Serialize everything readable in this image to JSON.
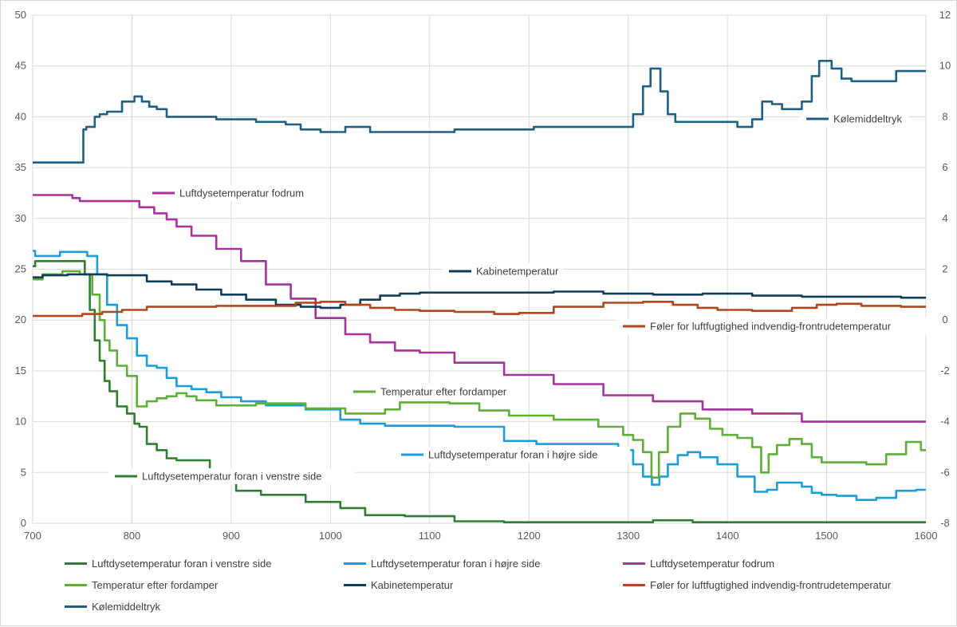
{
  "chart_data": {
    "type": "line",
    "title": "",
    "xlabel": "",
    "ylabel": "",
    "xlim": [
      700,
      1600
    ],
    "ylim": [
      0,
      50
    ],
    "y2lim": [
      -8,
      12
    ],
    "x_ticks": [
      "700",
      "800",
      "900",
      "1000",
      "1100",
      "1200",
      "1300",
      "1400",
      "1500",
      "1600"
    ],
    "y_ticks": [
      "0",
      "5",
      "10",
      "15",
      "20",
      "25",
      "30",
      "35",
      "40",
      "45",
      "50"
    ],
    "y2_ticks": [
      "-8",
      "-6",
      "-4",
      "-2",
      "0",
      "2",
      "4",
      "6",
      "8",
      "10",
      "12"
    ],
    "grid": true,
    "legend_position": "bottom",
    "series": [
      {
        "name": "Luftdysetemperatur foran i venstre side",
        "color": "#2e7d32",
        "axis": "left",
        "data_label": "Luftdysetemperatur foran i venstre side",
        "x": [
          700,
          705,
          750,
          755,
          760,
          765,
          770,
          775,
          780,
          790,
          800,
          805,
          810,
          820,
          830,
          840,
          850,
          857,
          900,
          910,
          950,
          1000,
          1020,
          1050,
          1100,
          1150,
          1200,
          1300,
          1350,
          1360,
          1370,
          1400,
          1500,
          1600
        ],
        "y": [
          25.3,
          25.8,
          25.8,
          24.5,
          21,
          18,
          16,
          14,
          13,
          11.5,
          10.8,
          9.8,
          9.5,
          7.8,
          7.2,
          6.4,
          6.2,
          6.2,
          4.0,
          3.2,
          2.8,
          2.1,
          1.5,
          0.8,
          0.7,
          0.2,
          0.1,
          0.1,
          0.3,
          0.3,
          0.1,
          0.1,
          0.1,
          0.1
        ]
      },
      {
        "name": "Luftdysetemperatur foran i højre side",
        "color": "#1a9dd9",
        "axis": "left",
        "data_label": "Luftdysetemperatur foran i højre side",
        "x": [
          700,
          705,
          750,
          760,
          770,
          780,
          790,
          800,
          810,
          820,
          830,
          840,
          850,
          870,
          880,
          900,
          920,
          950,
          1000,
          1020,
          1040,
          1070,
          1100,
          1150,
          1200,
          1215,
          1280,
          1300,
          1310,
          1320,
          1328,
          1335,
          1345,
          1355,
          1365,
          1380,
          1400,
          1420,
          1435,
          1445,
          1455,
          1470,
          1480,
          1490,
          1500,
          1520,
          1540,
          1560,
          1580,
          1600
        ],
        "y": [
          26.8,
          26.3,
          26.7,
          26.3,
          24.5,
          21.5,
          19.5,
          18.2,
          16.5,
          15.5,
          15.3,
          14.3,
          13.5,
          13.2,
          12.9,
          12.4,
          12,
          11.6,
          11.2,
          10.2,
          9.8,
          9.6,
          9.6,
          9.5,
          8.1,
          7.8,
          7.8,
          7.2,
          5.8,
          4.6,
          3.8,
          4.6,
          5.8,
          6.7,
          7,
          6.5,
          5.8,
          4.6,
          3.1,
          3.3,
          4.0,
          4.0,
          3.6,
          3.0,
          2.8,
          2.7,
          2.3,
          2.5,
          3.2,
          3.3
        ]
      },
      {
        "name": "Luftdysetemperatur fodrum",
        "color": "#a6329b",
        "axis": "left",
        "data_label": "Luftdysetemperatur fodrum",
        "x": [
          700,
          735,
          745,
          750,
          800,
          815,
          830,
          840,
          850,
          870,
          900,
          920,
          950,
          970,
          1000,
          1030,
          1050,
          1080,
          1100,
          1150,
          1200,
          1250,
          1300,
          1350,
          1400,
          1450,
          1500,
          1550,
          1600
        ],
        "y": [
          32.3,
          32.3,
          32,
          31.7,
          31.7,
          31.1,
          30.5,
          29.9,
          29.2,
          28.3,
          27,
          25.8,
          23.5,
          22.1,
          20.2,
          18.6,
          17.8,
          17,
          16.8,
          15.8,
          14.6,
          13.7,
          12.6,
          12,
          11.2,
          10.8,
          10.0,
          10.0,
          10.0
        ]
      },
      {
        "name": "Temperatur efter fordamper",
        "color": "#5eae37",
        "axis": "left",
        "data_label": "Temperatur efter fordamper",
        "x": [
          700,
          720,
          740,
          755,
          765,
          770,
          775,
          780,
          790,
          800,
          810,
          820,
          830,
          840,
          850,
          860,
          870,
          900,
          950,
          1000,
          1030,
          1050,
          1060,
          1080,
          1100,
          1140,
          1160,
          1200,
          1250,
          1290,
          1300,
          1310,
          1320,
          1327,
          1335,
          1345,
          1360,
          1375,
          1390,
          1400,
          1420,
          1430,
          1438,
          1445,
          1455,
          1470,
          1480,
          1490,
          1500,
          1530,
          1550,
          1570,
          1590,
          1600
        ],
        "y": [
          24,
          24.5,
          24.8,
          24.5,
          22.5,
          20,
          18,
          17,
          15.5,
          14.5,
          11.5,
          12,
          12.3,
          12.5,
          12.8,
          12.5,
          12.1,
          11.6,
          11.8,
          11.3,
          10.8,
          10.8,
          11.2,
          11.9,
          11.9,
          11.8,
          11.1,
          10.6,
          10.2,
          9.5,
          8.7,
          8.2,
          7,
          4.5,
          7,
          9.5,
          10.8,
          10.3,
          9.3,
          8.7,
          8.4,
          7.5,
          5,
          6.8,
          7.7,
          8.3,
          7.8,
          6.5,
          6,
          6,
          5.8,
          6.8,
          8,
          7.2
        ]
      },
      {
        "name": "Kabinetemperatur",
        "color": "#0f3d56",
        "axis": "left",
        "data_label": "Kabinetemperatur",
        "x": [
          700,
          720,
          750,
          800,
          830,
          850,
          880,
          900,
          930,
          960,
          980,
          1000,
          1020,
          1040,
          1060,
          1080,
          1100,
          1150,
          1200,
          1250,
          1300,
          1350,
          1400,
          1450,
          1500,
          1550,
          1600
        ],
        "y": [
          24.2,
          24.4,
          24.5,
          24.4,
          23.8,
          23.5,
          23,
          22.5,
          22,
          21.5,
          21.3,
          21.2,
          21.5,
          22,
          22.4,
          22.6,
          22.7,
          22.7,
          22.7,
          22.8,
          22.6,
          22.5,
          22.6,
          22.4,
          22.3,
          22.3,
          22.2
        ]
      },
      {
        "name": "Føler for luftfugtighed indvendig-frontrudetemperatur",
        "color": "#b0461d",
        "axis": "left",
        "data_label": "Føler for luftfugtighed indvendig-frontrudetemperatur",
        "x": [
          700,
          740,
          760,
          780,
          800,
          830,
          870,
          900,
          950,
          980,
          1000,
          1030,
          1050,
          1080,
          1100,
          1150,
          1180,
          1200,
          1250,
          1300,
          1330,
          1360,
          1380,
          1400,
          1450,
          1480,
          1500,
          1520,
          1550,
          1600
        ],
        "y": [
          20.4,
          20.4,
          20.6,
          20.8,
          21.0,
          21.3,
          21.3,
          21.4,
          21.4,
          21.7,
          21.8,
          21.5,
          21.2,
          21.0,
          20.9,
          20.8,
          20.6,
          20.7,
          21.3,
          21.7,
          21.8,
          21.5,
          21.2,
          21.0,
          20.9,
          21.2,
          21.5,
          21.6,
          21.4,
          21.3
        ]
      },
      {
        "name": "Kølemiddeltryk",
        "color": "#1f5f85",
        "axis": "right",
        "data_label": "Kølemiddeltryk",
        "x": [
          700,
          750,
          752,
          756,
          760,
          765,
          770,
          780,
          800,
          805,
          815,
          820,
          830,
          840,
          850,
          860,
          870,
          900,
          950,
          960,
          980,
          1000,
          1030,
          1050,
          1100,
          1150,
          1200,
          1210,
          1250,
          1300,
          1310,
          1320,
          1325,
          1330,
          1335,
          1345,
          1350,
          1360,
          1380,
          1400,
          1420,
          1430,
          1440,
          1450,
          1460,
          1470,
          1480,
          1490,
          1495,
          1500,
          1510,
          1520,
          1530,
          1550,
          1560,
          1580,
          1600
        ],
        "y": [
          6.2,
          6.2,
          7.5,
          7.6,
          7.6,
          8,
          8.1,
          8.2,
          8.6,
          8.8,
          8.6,
          8.4,
          8.3,
          8.0,
          8.0,
          8.0,
          8.0,
          7.9,
          7.8,
          7.7,
          7.5,
          7.4,
          7.6,
          7.4,
          7.4,
          7.5,
          7.5,
          7.6,
          7.6,
          7.6,
          8.1,
          9.2,
          9.9,
          9.9,
          9.0,
          8.1,
          7.8,
          7.8,
          7.8,
          7.8,
          7.6,
          7.9,
          8.6,
          8.5,
          8.3,
          8.3,
          8.6,
          9.6,
          10.2,
          10.2,
          9.9,
          9.5,
          9.4,
          9.4,
          9.4,
          9.8,
          9.8
        ]
      }
    ],
    "data_labels": [
      {
        "text": "Kølemiddeltryk",
        "series": 6
      },
      {
        "text": "Luftdysetemperatur fodrum",
        "series": 2
      },
      {
        "text": "Kabinetemperatur",
        "series": 4
      },
      {
        "text": "Føler for luftfugtighed indvendig-frontrudetemperatur",
        "series": 5
      },
      {
        "text": "Temperatur efter fordamper",
        "series": 3
      },
      {
        "text": "Luftdysetemperatur foran i højre side",
        "series": 1
      },
      {
        "text": "Luftdysetemperatur foran i venstre side",
        "series": 0
      }
    ]
  }
}
